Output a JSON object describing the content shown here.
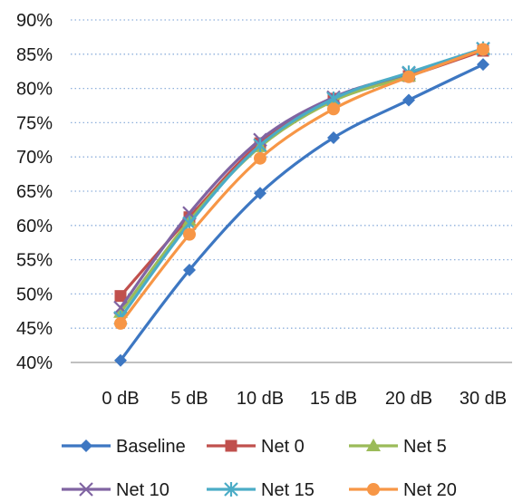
{
  "chart_data": {
    "type": "line",
    "title": "",
    "xlabel": "",
    "ylabel": "",
    "categories": [
      "0 dB",
      "5 dB",
      "10 dB",
      "15 dB",
      "20 dB",
      "30 dB"
    ],
    "ylim": [
      0.4,
      0.9
    ],
    "yticks": [
      "40%",
      "45%",
      "50%",
      "55%",
      "60%",
      "65%",
      "70%",
      "75%",
      "80%",
      "85%",
      "90%"
    ],
    "grid": "horizontal dotted",
    "legend_position": "bottom",
    "series": [
      {
        "name": "Baseline",
        "color": "#3d77c2",
        "marker": "diamond",
        "values": [
          0.403,
          0.535,
          0.647,
          0.728,
          0.783,
          0.835
        ]
      },
      {
        "name": "Net 0",
        "color": "#c0504d",
        "marker": "square",
        "values": [
          0.497,
          0.612,
          0.72,
          0.785,
          0.818,
          0.855
        ]
      },
      {
        "name": "Net 5",
        "color": "#9bbb59",
        "marker": "triangle",
        "values": [
          0.473,
          0.607,
          0.715,
          0.782,
          0.818,
          0.858
        ]
      },
      {
        "name": "Net 10",
        "color": "#8064a2",
        "marker": "x",
        "values": [
          0.48,
          0.618,
          0.725,
          0.787,
          0.822,
          0.858
        ]
      },
      {
        "name": "Net 15",
        "color": "#4bacc6",
        "marker": "star",
        "values": [
          0.465,
          0.603,
          0.717,
          0.785,
          0.823,
          0.858
        ]
      },
      {
        "name": "Net 20",
        "color": "#f79646",
        "marker": "circle",
        "values": [
          0.457,
          0.587,
          0.698,
          0.77,
          0.817,
          0.857
        ]
      }
    ]
  }
}
